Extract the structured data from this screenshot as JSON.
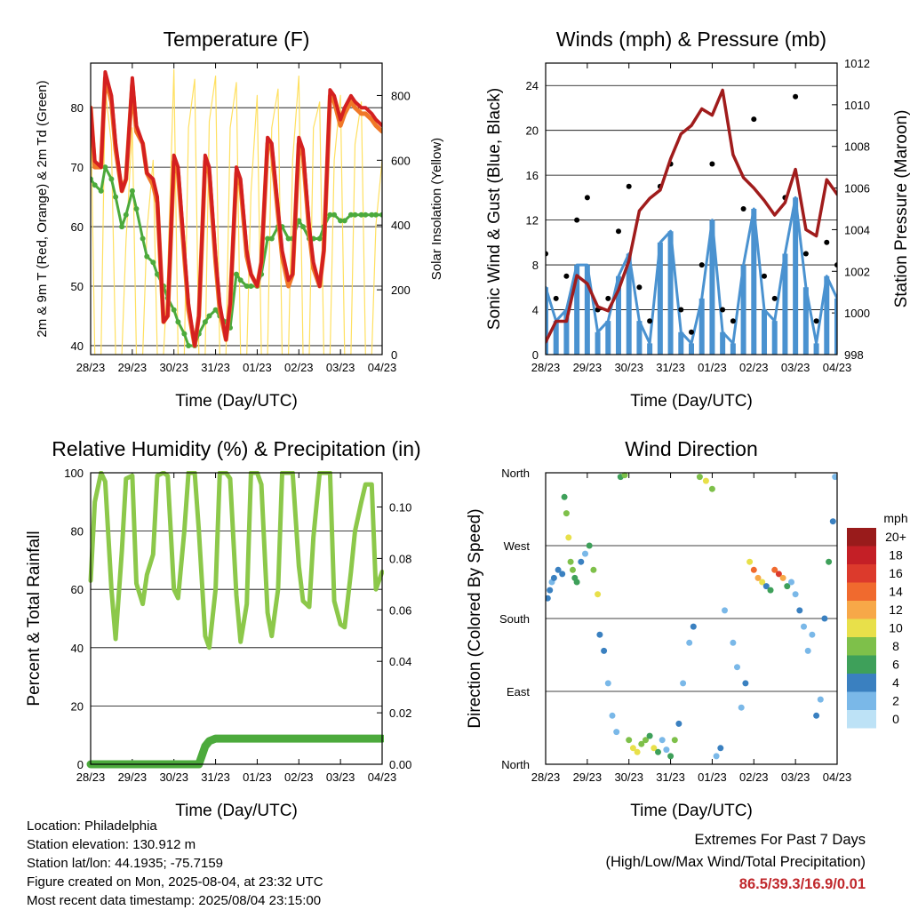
{
  "colors": {
    "temp_2m": "#d42020",
    "temp_9m": "#f07828",
    "dewpoint": "#4caa3c",
    "solar": "#ffe060",
    "wind": "#4a92d0",
    "gust": "#000000",
    "pressure": "#a01c1c",
    "rh": "#8cc84a",
    "precip": "#4caa3c",
    "extremes": "#c0282c"
  },
  "x_ticks": [
    "28/23",
    "29/23",
    "30/23",
    "31/23",
    "01/23",
    "02/23",
    "03/23",
    "04/23"
  ],
  "chart_data": [
    {
      "type": "line",
      "id": "temperature",
      "title": "Temperature (F)",
      "xlabel": "Time (Day/UTC)",
      "ylabel": "2m & 9m T (Red, Orange) & 2m Td (Green)",
      "ylabel_right": "Solar Insolation (Yellow)",
      "ylim": [
        38.5,
        87.5
      ],
      "ylim_right": [
        0,
        900
      ],
      "yticks": [
        40,
        50,
        60,
        70,
        80
      ],
      "yticks_right": [
        0,
        200,
        400,
        600,
        800
      ],
      "x_days": [
        0,
        0.1,
        0.25,
        0.35,
        0.5,
        0.6,
        0.75,
        0.85,
        1.0,
        1.1,
        1.25,
        1.35,
        1.5,
        1.6,
        1.75,
        1.85,
        2.0,
        2.1,
        2.25,
        2.35,
        2.5,
        2.6,
        2.75,
        2.85,
        3.0,
        3.1,
        3.25,
        3.35,
        3.5,
        3.6,
        3.75,
        3.85,
        4.0,
        4.1,
        4.25,
        4.35,
        4.5,
        4.6,
        4.75,
        4.85,
        5.0,
        5.1,
        5.25,
        5.35,
        5.5,
        5.6,
        5.75,
        5.85,
        6.0,
        6.1,
        6.25,
        6.35,
        6.5,
        6.6,
        6.75,
        6.85,
        7.0
      ],
      "series": [
        {
          "name": "2m T",
          "values": [
            80,
            71,
            70,
            86,
            82,
            74,
            66,
            68,
            85,
            77,
            74,
            69,
            68,
            65,
            44,
            45,
            72,
            70,
            56,
            47,
            40,
            45,
            72,
            70,
            55,
            47,
            41,
            47,
            70,
            68,
            56,
            52,
            50,
            54,
            75,
            74,
            63,
            56,
            51,
            52,
            75,
            73,
            60,
            54,
            50,
            56,
            83,
            82,
            78,
            80,
            82,
            81,
            80,
            80,
            79,
            78,
            77
          ]
        },
        {
          "name": "9m T",
          "values": [
            80,
            70,
            70,
            85,
            81,
            73,
            66,
            68,
            84,
            76,
            74,
            69,
            67,
            64,
            44,
            45,
            71,
            69,
            55,
            46,
            40,
            45,
            71,
            69,
            54,
            46,
            41,
            47,
            69,
            67,
            55,
            52,
            50,
            54,
            74,
            73,
            62,
            55,
            50,
            52,
            74,
            72,
            59,
            53,
            50,
            56,
            82,
            81,
            77,
            79,
            81,
            80,
            79,
            79,
            78,
            77,
            76
          ]
        },
        {
          "name": "2m Td",
          "values": [
            68,
            67,
            66,
            70,
            68,
            65,
            60,
            62,
            66,
            63,
            58,
            55,
            54,
            52,
            50,
            48,
            46,
            44,
            42,
            40,
            40,
            42,
            44,
            45,
            46,
            45,
            44,
            43,
            52,
            51,
            50,
            50,
            50,
            52,
            58,
            58,
            60,
            60,
            58,
            58,
            61,
            60,
            58,
            58,
            58,
            60,
            62,
            62,
            61,
            61,
            62,
            62,
            62,
            62,
            62,
            62,
            62
          ]
        },
        {
          "name": "Solar",
          "axis": "right",
          "values": [
            780,
            0,
            0,
            820,
            650,
            0,
            0,
            350,
            700,
            0,
            0,
            380,
            600,
            0,
            0,
            250,
            880,
            0,
            0,
            700,
            850,
            0,
            0,
            720,
            860,
            0,
            0,
            700,
            840,
            0,
            0,
            500,
            800,
            0,
            0,
            700,
            820,
            0,
            0,
            600,
            860,
            0,
            0,
            700,
            780,
            0,
            0,
            600,
            800,
            0,
            0,
            650,
            780,
            0,
            0,
            400,
            600
          ]
        }
      ]
    },
    {
      "type": "scatter",
      "id": "winds",
      "title": "Winds (mph) & Pressure (mb)",
      "xlabel": "Time (Day/UTC)",
      "ylabel": "Sonic Wind & Gust (Blue, Black)",
      "ylabel_right": "Station Pressure (Maroon)",
      "ylim": [
        0,
        26
      ],
      "ylim_right": [
        998,
        1012
      ],
      "yticks": [
        0,
        4,
        8,
        12,
        16,
        20,
        24
      ],
      "yticks_right": [
        998,
        1000,
        1002,
        1004,
        1006,
        1008,
        1010,
        1012
      ],
      "x_days": [
        0,
        0.25,
        0.5,
        0.75,
        1.0,
        1.25,
        1.5,
        1.75,
        2.0,
        2.25,
        2.5,
        2.75,
        3.0,
        3.25,
        3.5,
        3.75,
        4.0,
        4.25,
        4.5,
        4.75,
        5.0,
        5.25,
        5.5,
        5.75,
        6.0,
        6.25,
        6.5,
        6.75,
        7.0
      ],
      "series": [
        {
          "name": "Sonic Wind",
          "values": [
            6,
            3,
            4,
            8,
            8,
            2,
            3,
            7,
            9,
            3,
            1,
            10,
            11,
            2,
            1,
            5,
            12,
            2,
            1,
            8,
            13,
            4,
            3,
            9,
            14,
            6,
            1,
            7,
            5
          ]
        },
        {
          "name": "Gust",
          "values": [
            9,
            5,
            7,
            12,
            14,
            4,
            5,
            11,
            15,
            6,
            3,
            15,
            17,
            4,
            2,
            8,
            17,
            4,
            3,
            13,
            21,
            7,
            5,
            14,
            23,
            9,
            3,
            10,
            8
          ]
        },
        {
          "name": "Pressure",
          "axis": "right",
          "values": [
            998.6,
            999.6,
            999.6,
            1001.8,
            1001.4,
            1000.3,
            1000.1,
            1001.1,
            1002.5,
            1004.9,
            1005.5,
            1005.9,
            1007.4,
            1008.6,
            1009.0,
            1009.8,
            1009.5,
            1010.7,
            1007.6,
            1006.5,
            1006.0,
            1005.4,
            1004.7,
            1005.3,
            1006.9,
            1004.0,
            1003.7,
            1006.4,
            1005.7
          ]
        }
      ]
    },
    {
      "type": "line",
      "id": "humidity",
      "title": "Relative Humidity (%) & Precipitation (in)",
      "xlabel": "Time (Day/UTC)",
      "ylabel": "Percent & Total Rainfall",
      "ylim": [
        0,
        100
      ],
      "ylim_right": [
        0,
        0.1133
      ],
      "yticks": [
        0,
        20,
        40,
        60,
        80,
        100
      ],
      "yticks_right": [
        "0.00",
        "0.02",
        "0.04",
        "0.06",
        "0.08",
        "0.10"
      ],
      "x_days": [
        0,
        0.1,
        0.25,
        0.35,
        0.5,
        0.6,
        0.75,
        0.85,
        1.0,
        1.1,
        1.25,
        1.35,
        1.5,
        1.6,
        1.75,
        1.85,
        2.0,
        2.1,
        2.25,
        2.35,
        2.5,
        2.6,
        2.75,
        2.85,
        3.0,
        3.1,
        3.25,
        3.35,
        3.5,
        3.6,
        3.75,
        3.85,
        4.0,
        4.1,
        4.25,
        4.35,
        4.5,
        4.6,
        4.75,
        4.85,
        5.0,
        5.1,
        5.25,
        5.35,
        5.5,
        5.6,
        5.75,
        5.85,
        6.0,
        6.1,
        6.25,
        6.35,
        6.5,
        6.6,
        6.75,
        6.85,
        7.0
      ],
      "series": [
        {
          "name": "RH",
          "values": [
            63,
            90,
            100,
            97,
            60,
            43,
            73,
            98,
            99,
            62,
            55,
            65,
            72,
            99,
            100,
            99,
            60,
            57,
            80,
            100,
            100,
            80,
            44,
            40,
            60,
            100,
            100,
            98,
            58,
            42,
            55,
            100,
            100,
            96,
            52,
            44,
            60,
            100,
            100,
            100,
            68,
            56,
            54,
            78,
            100,
            100,
            100,
            56,
            48,
            47,
            66,
            80,
            90,
            96,
            96,
            60,
            66
          ]
        },
        {
          "name": "Precip",
          "axis": "right",
          "values": [
            0,
            0,
            0,
            0,
            0,
            0,
            0,
            0,
            0,
            0,
            0,
            0,
            0,
            0,
            0,
            0,
            0,
            0,
            0,
            0,
            0,
            0,
            0.007,
            0.009,
            0.01,
            0.01,
            0.01,
            0.01,
            0.01,
            0.01,
            0.01,
            0.01,
            0.01,
            0.01,
            0.01,
            0.01,
            0.01,
            0.01,
            0.01,
            0.01,
            0.01,
            0.01,
            0.01,
            0.01,
            0.01,
            0.01,
            0.01,
            0.01,
            0.01,
            0.01,
            0.01,
            0.01,
            0.01,
            0.01,
            0.01,
            0.01,
            0.01
          ]
        }
      ]
    },
    {
      "type": "scatter",
      "id": "direction",
      "title": "Wind Direction",
      "xlabel": "Time (Day/UTC)",
      "ylabel": "Direction (Colored By Speed)",
      "yticks": [
        "North",
        "East",
        "South",
        "West",
        "North"
      ],
      "ylim": [
        0,
        360
      ],
      "legend_title": "mph",
      "legend_labels": [
        "20+",
        "18",
        "16",
        "14",
        "12",
        "10",
        "8",
        "6",
        "4",
        "2",
        "0"
      ],
      "legend_colors": [
        "#991b1b",
        "#c41f26",
        "#dc3a2c",
        "#f06a2e",
        "#f7a848",
        "#e8e04a",
        "#7ec04a",
        "#3ea05a",
        "#3a80c0",
        "#7ab8e8",
        "#bde2f6"
      ],
      "x_days": [
        0.05,
        0.1,
        0.15,
        0.2,
        0.3,
        0.4,
        0.45,
        0.5,
        0.55,
        0.6,
        0.65,
        0.7,
        0.75,
        0.85,
        0.95,
        1.05,
        1.15,
        1.25,
        1.3,
        1.4,
        1.5,
        1.6,
        1.7,
        1.8,
        1.9,
        2.0,
        2.1,
        2.2,
        2.3,
        2.4,
        2.5,
        2.6,
        2.7,
        2.8,
        2.9,
        3.0,
        3.1,
        3.2,
        3.3,
        3.45,
        3.55,
        3.7,
        3.85,
        4.0,
        4.1,
        4.2,
        4.3,
        4.5,
        4.6,
        4.7,
        4.8,
        4.9,
        5.0,
        5.1,
        5.2,
        5.3,
        5.4,
        5.5,
        5.6,
        5.7,
        5.8,
        5.9,
        6.0,
        6.1,
        6.2,
        6.3,
        6.4,
        6.5,
        6.6,
        6.7,
        6.8,
        6.9,
        6.95
      ],
      "series": [
        {
          "name": "Direction",
          "values": [
            205,
            215,
            225,
            230,
            240,
            235,
            330,
            310,
            280,
            250,
            240,
            230,
            225,
            250,
            260,
            270,
            240,
            210,
            160,
            140,
            100,
            60,
            40,
            355,
            357,
            30,
            20,
            15,
            25,
            30,
            35,
            20,
            15,
            30,
            18,
            10,
            30,
            50,
            100,
            150,
            170,
            355,
            350,
            340,
            10,
            20,
            190,
            150,
            120,
            70,
            100,
            250,
            240,
            230,
            225,
            220,
            215,
            240,
            235,
            230,
            220,
            225,
            210,
            190,
            170,
            140,
            160,
            60,
            80,
            180,
            250,
            300,
            355
          ]
        },
        {
          "name": "Speed",
          "values": [
            4,
            3,
            2,
            3,
            4,
            3,
            6,
            7,
            9,
            7,
            8,
            6,
            5,
            4,
            2,
            6,
            8,
            10,
            4,
            3,
            2,
            1,
            2,
            6,
            7,
            8,
            10,
            9,
            8,
            7,
            6,
            9,
            5,
            2,
            1,
            6,
            7,
            3,
            1,
            2,
            3,
            7,
            9,
            8,
            2,
            3,
            1,
            1,
            2,
            1,
            4,
            10,
            14,
            12,
            9,
            4,
            6,
            13,
            16,
            11,
            5,
            2,
            1,
            3,
            2,
            1,
            2,
            3,
            1,
            4,
            6,
            3,
            2
          ]
        }
      ]
    }
  ],
  "info": {
    "location": "Location: Philadelphia",
    "elevation": "Station elevation: 130.912 m",
    "latlon": "Station lat/lon: 44.1935; -75.7159",
    "created": "Figure created on Mon, 2025-08-04, at 23:32 UTC",
    "timestamp": "Most recent data timestamp: 2025/08/04 23:15:00"
  },
  "extremes": {
    "title": "Extremes For Past 7 Days",
    "subtitle": "(High/Low/Max Wind/Total Precipitation)",
    "values": "86.5/39.3/16.9/0.01"
  }
}
